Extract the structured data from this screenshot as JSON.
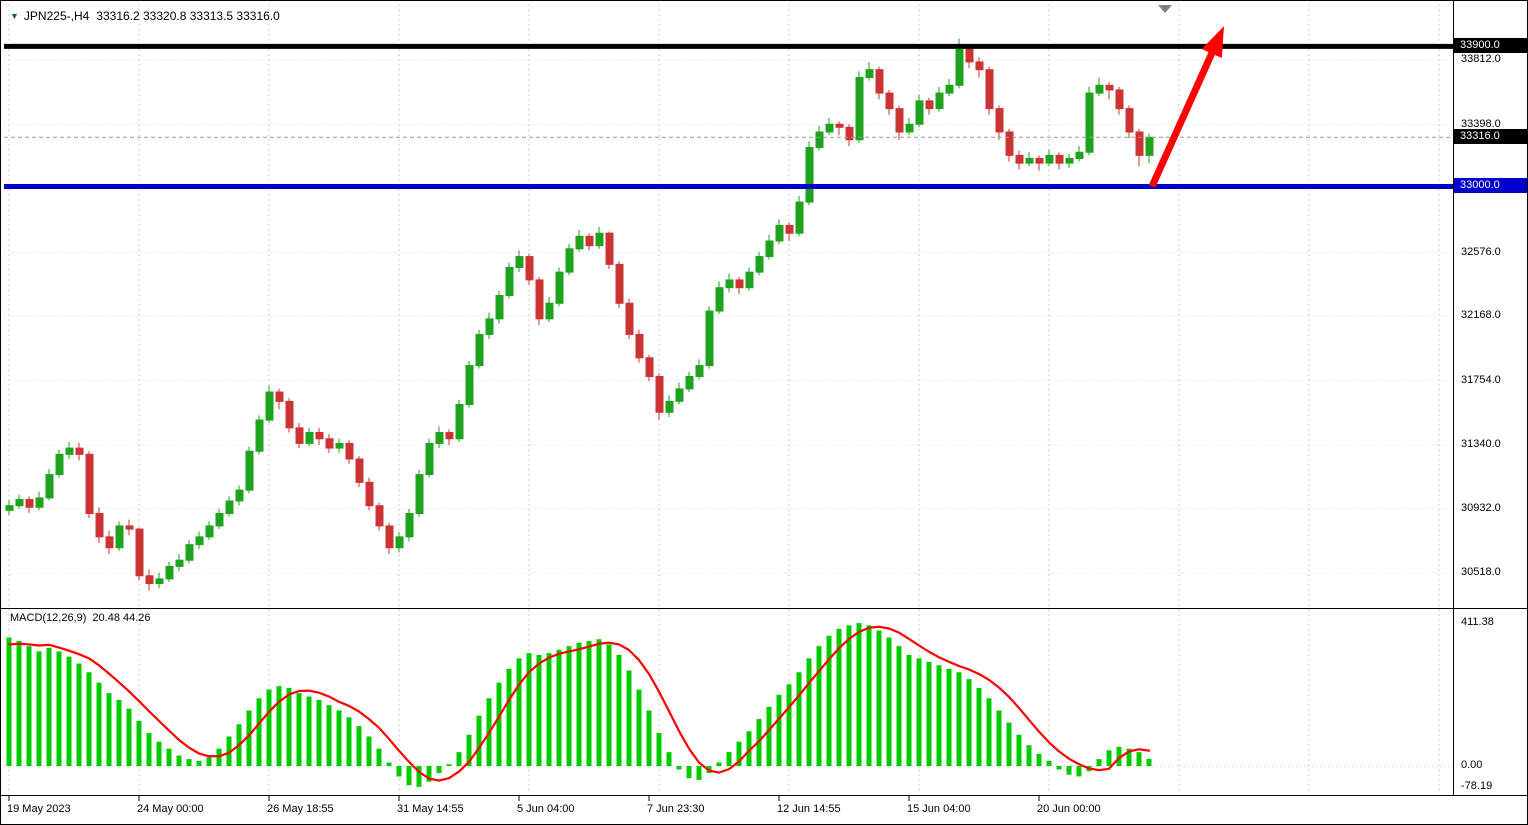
{
  "header": {
    "marker": "▼",
    "symbol": "JPN225-,H4",
    "quote": "33316.2 33320.8 33313.5 33316.0"
  },
  "macd_header": {
    "name": "MACD(12,26,9)",
    "values": "20.48 44.26"
  },
  "chart_data": {
    "type": "candlestick",
    "symbol": "JPN225-",
    "timeframe": "H4",
    "main_panel": {
      "ylim": [
        30293,
        34172
      ],
      "grid_price_labels": [
        33812.0,
        33398.0,
        32576.0,
        32168.0,
        31754.0,
        31340.0,
        30932.0,
        30518.0
      ],
      "hlines": [
        {
          "price": 33900.0,
          "label": "33900.0",
          "color": "#000000",
          "width": 5
        },
        {
          "price": 33000.0,
          "label": "33000.0",
          "color": "#0000cc",
          "width": 5
        }
      ],
      "current_price": {
        "price": 33316.0,
        "label": "33316.0",
        "bg": "#000000"
      },
      "candles": [
        [
          30920,
          30985,
          30890,
          30950
        ],
        [
          30950,
          31020,
          30930,
          30990
        ],
        [
          30990,
          31010,
          30905,
          30940
        ],
        [
          30940,
          31040,
          30920,
          31000
        ],
        [
          31000,
          31185,
          30985,
          31150
        ],
        [
          31150,
          31310,
          31130,
          31280
        ],
        [
          31280,
          31360,
          31250,
          31320
        ],
        [
          31320,
          31355,
          31240,
          31280
        ],
        [
          31280,
          31300,
          30870,
          30900
        ],
        [
          30900,
          30940,
          30710,
          30750
        ],
        [
          30750,
          30790,
          30640,
          30680
        ],
        [
          30680,
          30850,
          30660,
          30820
        ],
        [
          30820,
          30860,
          30760,
          30800
        ],
        [
          30800,
          30810,
          30470,
          30500
        ],
        [
          30500,
          30540,
          30405,
          30450
        ],
        [
          30450,
          30520,
          30420,
          30480
        ],
        [
          30480,
          30590,
          30460,
          30560
        ],
        [
          30560,
          30640,
          30530,
          30600
        ],
        [
          30600,
          30730,
          30580,
          30700
        ],
        [
          30700,
          30785,
          30670,
          30750
        ],
        [
          30750,
          30850,
          30730,
          30820
        ],
        [
          30820,
          30930,
          30800,
          30900
        ],
        [
          30900,
          31010,
          30880,
          30980
        ],
        [
          30980,
          31080,
          30950,
          31050
        ],
        [
          31050,
          31330,
          31030,
          31300
        ],
        [
          31300,
          31530,
          31280,
          31500
        ],
        [
          31500,
          31720,
          31480,
          31680
        ],
        [
          31680,
          31700,
          31570,
          31620
        ],
        [
          31620,
          31640,
          31420,
          31450
        ],
        [
          31450,
          31480,
          31320,
          31350
        ],
        [
          31350,
          31450,
          31330,
          31420
        ],
        [
          31420,
          31450,
          31340,
          31380
        ],
        [
          31380,
          31410,
          31290,
          31320
        ],
        [
          31320,
          31380,
          31290,
          31350
        ],
        [
          31350,
          31370,
          31220,
          31250
        ],
        [
          31250,
          31270,
          31070,
          31100
        ],
        [
          31100,
          31130,
          30920,
          30950
        ],
        [
          30950,
          30970,
          30790,
          30820
        ],
        [
          30820,
          30840,
          30640,
          30680
        ],
        [
          30680,
          30780,
          30650,
          30750
        ],
        [
          30750,
          30930,
          30720,
          30900
        ],
        [
          30900,
          31180,
          30880,
          31150
        ],
        [
          31150,
          31380,
          31130,
          31350
        ],
        [
          31350,
          31460,
          31320,
          31420
        ],
        [
          31420,
          31440,
          31340,
          31380
        ],
        [
          31380,
          31630,
          31360,
          31600
        ],
        [
          31600,
          31880,
          31580,
          31850
        ],
        [
          31850,
          32080,
          31830,
          32050
        ],
        [
          32050,
          32190,
          32020,
          32150
        ],
        [
          32150,
          32330,
          32120,
          32300
        ],
        [
          32300,
          32510,
          32280,
          32480
        ],
        [
          32480,
          32590,
          32450,
          32550
        ],
        [
          32550,
          32570,
          32370,
          32400
        ],
        [
          32400,
          32420,
          32110,
          32150
        ],
        [
          32150,
          32290,
          32130,
          32250
        ],
        [
          32250,
          32480,
          32230,
          32450
        ],
        [
          32450,
          32630,
          32430,
          32600
        ],
        [
          32600,
          32720,
          32580,
          32680
        ],
        [
          32680,
          32700,
          32590,
          32620
        ],
        [
          32620,
          32740,
          32600,
          32700
        ],
        [
          32700,
          32710,
          32470,
          32500
        ],
        [
          32500,
          32520,
          32220,
          32250
        ],
        [
          32250,
          32280,
          32020,
          32050
        ],
        [
          32050,
          32080,
          31870,
          31900
        ],
        [
          31900,
          31920,
          31750,
          31780
        ],
        [
          31780,
          31800,
          31500,
          31550
        ],
        [
          31550,
          31660,
          31520,
          31620
        ],
        [
          31620,
          31740,
          31600,
          31700
        ],
        [
          31700,
          31810,
          31680,
          31780
        ],
        [
          31780,
          31890,
          31760,
          31850
        ],
        [
          31850,
          32230,
          31830,
          32200
        ],
        [
          32200,
          32390,
          32180,
          32350
        ],
        [
          32350,
          32440,
          32320,
          32400
        ],
        [
          32400,
          32420,
          32310,
          32350
        ],
        [
          32350,
          32480,
          32330,
          32450
        ],
        [
          32450,
          32580,
          32430,
          32550
        ],
        [
          32550,
          32690,
          32530,
          32650
        ],
        [
          32650,
          32790,
          32630,
          32750
        ],
        [
          32750,
          32770,
          32650,
          32700
        ],
        [
          32700,
          32940,
          32680,
          32900
        ],
        [
          32900,
          33290,
          32880,
          33250
        ],
        [
          33250,
          33390,
          33230,
          33350
        ],
        [
          33350,
          33440,
          33330,
          33400
        ],
        [
          33400,
          33420,
          33330,
          33380
        ],
        [
          33380,
          33400,
          33260,
          33300
        ],
        [
          33300,
          33740,
          33280,
          33700
        ],
        [
          33700,
          33800,
          33680,
          33750
        ],
        [
          33750,
          33770,
          33560,
          33600
        ],
        [
          33600,
          33620,
          33460,
          33500
        ],
        [
          33500,
          33520,
          33300,
          33350
        ],
        [
          33350,
          33440,
          33330,
          33400
        ],
        [
          33400,
          33590,
          33380,
          33550
        ],
        [
          33550,
          33570,
          33460,
          33500
        ],
        [
          33500,
          33640,
          33480,
          33600
        ],
        [
          33600,
          33690,
          33580,
          33650
        ],
        [
          33650,
          33950,
          33630,
          33880
        ],
        [
          33880,
          33910,
          33760,
          33800
        ],
        [
          33800,
          33830,
          33700,
          33750
        ],
        [
          33750,
          33770,
          33460,
          33500
        ],
        [
          33500,
          33520,
          33300,
          33350
        ],
        [
          33350,
          33370,
          33160,
          33200
        ],
        [
          33200,
          33230,
          33110,
          33150
        ],
        [
          33150,
          33220,
          33130,
          33180
        ],
        [
          33180,
          33200,
          33100,
          33150
        ],
        [
          33150,
          33240,
          33130,
          33200
        ],
        [
          33200,
          33220,
          33110,
          33150
        ],
        [
          33150,
          33210,
          33120,
          33180
        ],
        [
          33180,
          33260,
          33160,
          33220
        ],
        [
          33220,
          33640,
          33200,
          33600
        ],
        [
          33600,
          33700,
          33580,
          33650
        ],
        [
          33650,
          33670,
          33560,
          33620
        ],
        [
          33620,
          33640,
          33460,
          33500
        ],
        [
          33500,
          33520,
          33310,
          33350
        ],
        [
          33350,
          33370,
          33130,
          33200
        ],
        [
          33200,
          33340,
          33150,
          33316
        ]
      ]
    },
    "macd": {
      "label": "MACD(12,26,9)",
      "value_main": 20.48,
      "value_signal": 44.26,
      "ylim": [
        -80.6,
        452.1
      ],
      "axis_labels": [
        {
          "text": "411.38",
          "value": 411.38
        },
        {
          "text": "0.00",
          "value": 0
        },
        {
          "text": "-78.19",
          "value": -78.19
        }
      ],
      "histogram": [
        370,
        360,
        345,
        330,
        340,
        330,
        315,
        295,
        270,
        240,
        210,
        190,
        165,
        130,
        95,
        70,
        50,
        30,
        20,
        15,
        25,
        50,
        85,
        120,
        160,
        195,
        220,
        230,
        225,
        210,
        200,
        190,
        175,
        160,
        140,
        115,
        85,
        50,
        10,
        -30,
        -55,
        -60,
        -45,
        -20,
        5,
        40,
        90,
        145,
        195,
        240,
        280,
        310,
        325,
        320,
        325,
        335,
        345,
        355,
        360,
        365,
        350,
        320,
        275,
        220,
        160,
        95,
        40,
        -10,
        -35,
        -40,
        -20,
        10,
        40,
        70,
        100,
        135,
        170,
        205,
        235,
        270,
        310,
        345,
        375,
        395,
        405,
        411.38,
        405,
        390,
        370,
        345,
        320,
        310,
        300,
        290,
        280,
        270,
        250,
        225,
        195,
        160,
        125,
        90,
        60,
        35,
        15,
        -10,
        -25,
        -30,
        -15,
        20,
        45,
        55,
        50,
        40,
        20.48
      ],
      "signal": [
        350,
        352,
        350,
        347,
        349,
        341,
        332,
        322,
        310,
        290,
        266,
        241,
        215,
        187,
        158,
        130,
        102,
        75,
        53,
        36,
        28,
        28,
        38,
        60,
        88,
        122,
        156,
        185,
        206,
        216,
        217,
        211,
        200,
        185,
        173,
        157,
        135,
        110,
        78,
        44,
        12,
        -17,
        -36,
        -42,
        -35,
        -16,
        12,
        52,
        95,
        142,
        190,
        234,
        270,
        295,
        312,
        323,
        330,
        336,
        344,
        352,
        355,
        350,
        334,
        305,
        265,
        214,
        158,
        101,
        50,
        10,
        -13,
        -19,
        -9,
        13,
        44,
        71,
        103,
        136,
        169,
        203,
        239,
        273,
        307,
        339,
        366,
        386,
        398,
        401,
        396,
        384,
        366,
        347,
        329,
        313,
        300,
        288,
        278,
        265,
        248,
        226,
        199,
        167,
        133,
        99,
        68,
        42,
        21,
        5,
        -7,
        -12,
        -8,
        23,
        42,
        48,
        44.26
      ]
    },
    "time_labels": [
      {
        "text": "19 May 2023",
        "index": 0
      },
      {
        "text": "24 May 00:00",
        "index": 13
      },
      {
        "text": "26 May 18:55",
        "index": 26
      },
      {
        "text": "31 May 14:55",
        "index": 39
      },
      {
        "text": "5 Jun 04:00",
        "index": 51
      },
      {
        "text": "7 Jun 23:30",
        "index": 64
      },
      {
        "text": "12 Jun 14:55",
        "index": 77
      },
      {
        "text": "15 Jun 04:00",
        "index": 90
      },
      {
        "text": "20 Jun 00:00",
        "index": 103
      }
    ],
    "annotations": {
      "arrow": {
        "color": "#ff0000",
        "from_index": 114.3,
        "from_price": 33000,
        "to_index": 121.5,
        "to_price": 34030
      }
    },
    "colors": {
      "up": "#1ea31e",
      "down": "#cc3333",
      "macd_bar": "#00cc00",
      "signal_line": "#ff0000",
      "grid": "#cdcdcd",
      "support_line": "#0000cc",
      "resistance_line": "#000000"
    }
  }
}
